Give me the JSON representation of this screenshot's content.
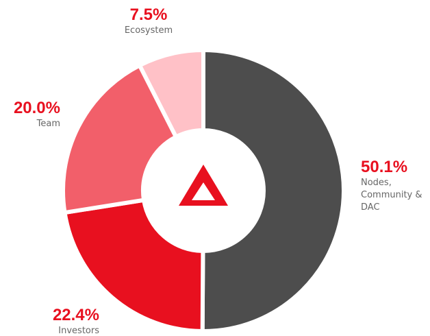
{
  "chart_data": {
    "type": "donut",
    "categories": [
      "Nodes, Community & DAC",
      "Investors",
      "Team",
      "Ecosystem"
    ],
    "values": [
      50.1,
      22.4,
      20.0,
      7.5
    ],
    "value_labels": [
      "50.1%",
      "22.4%",
      "20.0%",
      "7.5%"
    ],
    "colors": [
      "#4d4d4d",
      "#e8101f",
      "#f25f6a",
      "#ffc1c7"
    ]
  }
}
